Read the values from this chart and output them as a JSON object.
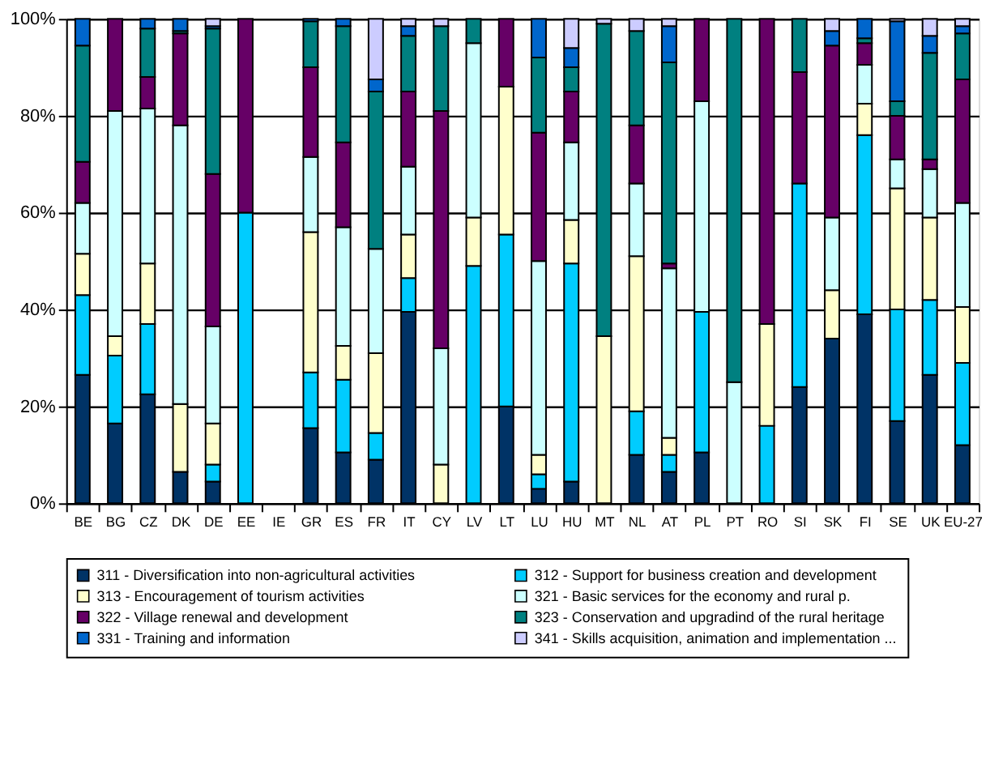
{
  "chart_data": {
    "type": "bar",
    "stacked": true,
    "categories": [
      "BE",
      "BG",
      "CZ",
      "DK",
      "DE",
      "EE",
      "IE",
      "GR",
      "ES",
      "FR",
      "IT",
      "CY",
      "LV",
      "LT",
      "LU",
      "HU",
      "MT",
      "NL",
      "AT",
      "PL",
      "PT",
      "RO",
      "SI",
      "SK",
      "FI",
      "SE",
      "UK",
      "EU-27"
    ],
    "series": [
      {
        "name": "311 - Diversification into non-agricultural activities",
        "color": "#003366",
        "values": [
          26.5,
          16.5,
          22.5,
          6.5,
          4.5,
          0,
          0,
          15.5,
          10.5,
          9,
          39.5,
          0,
          0,
          20,
          3,
          4.5,
          0,
          10,
          6.5,
          10.5,
          0,
          0,
          24,
          34,
          39,
          17,
          26.5,
          12
        ]
      },
      {
        "name": "312 - Support for business creation and development",
        "color": "#00ccff",
        "values": [
          16.5,
          14,
          14.5,
          0,
          3.5,
          60,
          0,
          11.5,
          15,
          5.5,
          7,
          0,
          49,
          35.5,
          3,
          45,
          0,
          9,
          3.5,
          29,
          0,
          16,
          42,
          0,
          37,
          23,
          15.5,
          17
        ]
      },
      {
        "name": "313 - Encouragement of tourism activities",
        "color": "#ffffcc",
        "values": [
          8.5,
          4,
          12.5,
          14,
          8.5,
          0,
          0,
          29,
          7,
          16.5,
          9,
          8,
          10,
          30.5,
          4,
          9,
          34.5,
          32,
          3.5,
          0,
          0,
          21,
          0,
          10,
          6.5,
          25,
          17,
          11.5
        ]
      },
      {
        "name": "321 - Basic services for the economy and rural p.",
        "color": "#ccffff",
        "values": [
          10.5,
          46.5,
          32,
          57.5,
          20,
          0,
          0,
          15.5,
          24.5,
          21.5,
          14,
          24,
          36,
          0,
          40,
          16,
          0,
          15,
          35,
          43.5,
          25,
          0,
          0,
          15,
          8,
          6,
          10,
          21.5
        ]
      },
      {
        "name": "322 - Village renewal and development",
        "color": "#660066",
        "values": [
          8.5,
          19,
          6.5,
          19,
          31.5,
          40,
          0,
          18.5,
          17.5,
          0,
          15.5,
          49,
          0,
          14,
          26.5,
          10.5,
          0,
          12,
          1,
          17,
          0,
          63,
          23,
          35.5,
          4.5,
          9,
          2,
          25.5
        ]
      },
      {
        "name": "323 - Conservation and upgradind of the rural heritage",
        "color": "#008080",
        "values": [
          24,
          0,
          10,
          0.5,
          30,
          0,
          0,
          9.5,
          24,
          32.5,
          11.5,
          17.5,
          5,
          0,
          15.5,
          5,
          64.5,
          19.5,
          41.5,
          0,
          75,
          0,
          11,
          0,
          1,
          3,
          22,
          9.5
        ]
      },
      {
        "name": "331 - Training and information",
        "color": "#0066cc",
        "values": [
          5.5,
          0,
          2,
          2.5,
          0.5,
          0,
          0,
          0.5,
          1.5,
          2.5,
          2,
          0,
          0,
          0,
          8,
          4,
          0,
          0,
          7.5,
          0,
          0,
          0,
          0,
          3,
          4,
          16.5,
          3.5,
          1.5
        ]
      },
      {
        "name": "341 - Skills acquisition, animation and implementation ...",
        "color": "#ccccff",
        "values": [
          0,
          0,
          0,
          0,
          1.5,
          0,
          0,
          0,
          0,
          12.5,
          1.5,
          1.5,
          0,
          0,
          0,
          6,
          1,
          2.5,
          1.5,
          0,
          0,
          0,
          0,
          2.5,
          0,
          0.5,
          3.5,
          1.5
        ]
      }
    ],
    "ylim": [
      0,
      100
    ],
    "yticks": [
      {
        "value": 0,
        "label": "0%"
      },
      {
        "value": 20,
        "label": "20%"
      },
      {
        "value": 40,
        "label": "40%"
      },
      {
        "value": 60,
        "label": "60%"
      },
      {
        "value": 80,
        "label": "80%"
      },
      {
        "value": 100,
        "label": "100%"
      }
    ],
    "grid": "y",
    "legend": "bottom"
  }
}
